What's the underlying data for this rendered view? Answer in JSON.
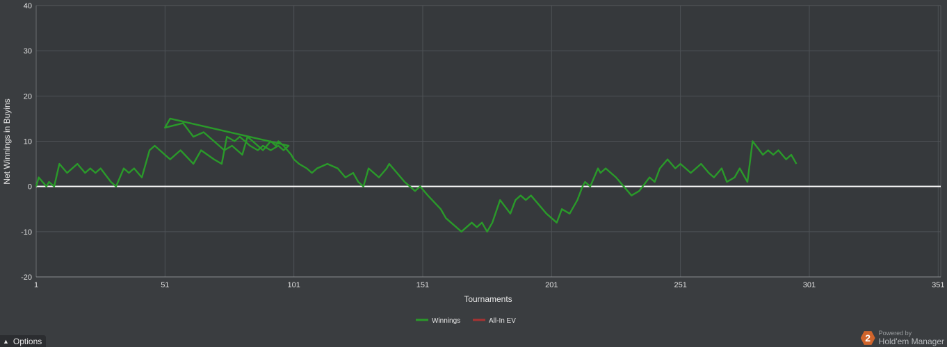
{
  "chart_data": {
    "type": "line",
    "xlabel": "Tournaments",
    "ylabel": "Net Winnings in Buyins",
    "xlim": [
      1,
      352
    ],
    "ylim": [
      -20,
      40
    ],
    "x_ticks": [
      1,
      51,
      101,
      151,
      201,
      251,
      301,
      351
    ],
    "x_tick_labels": [
      "1",
      "51",
      "101",
      "151",
      "201",
      "251",
      "301",
      "351"
    ],
    "y_ticks": [
      -20,
      -10,
      0,
      10,
      20,
      30,
      40
    ],
    "y_tick_labels": [
      "-20",
      "-10",
      "0",
      "10",
      "20",
      "30",
      "40"
    ],
    "grid": true,
    "legend_position": "bottom-center",
    "series": [
      {
        "name": "Winnings",
        "color": "#2a9a2a",
        "points": [
          [
            1,
            0
          ],
          [
            2,
            2
          ],
          [
            5,
            0
          ],
          [
            6,
            1
          ],
          [
            8,
            0
          ],
          [
            10,
            5
          ],
          [
            13,
            3
          ],
          [
            17,
            5
          ],
          [
            20,
            3
          ],
          [
            22,
            4
          ],
          [
            24,
            3
          ],
          [
            26,
            4
          ],
          [
            30,
            1
          ],
          [
            32,
            0
          ],
          [
            35,
            4
          ],
          [
            37,
            3
          ],
          [
            39,
            4
          ],
          [
            42,
            2
          ],
          [
            45,
            8
          ],
          [
            47,
            9
          ],
          [
            53,
            6
          ],
          [
            57,
            8
          ],
          [
            62,
            5
          ],
          [
            65,
            8
          ],
          [
            70,
            6
          ],
          [
            73,
            5
          ],
          [
            75,
            11
          ],
          [
            78,
            10
          ],
          [
            80,
            11
          ],
          [
            84,
            9
          ],
          [
            87,
            8
          ],
          [
            89,
            9
          ],
          [
            92,
            8
          ],
          [
            95,
            9
          ],
          [
            97,
            8
          ],
          [
            99,
            9
          ],
          [
            53,
            15
          ],
          [
            51,
            13
          ],
          [
            58,
            14
          ],
          [
            62,
            11
          ],
          [
            66,
            12
          ],
          [
            70,
            10
          ],
          [
            74,
            8
          ],
          [
            77,
            9
          ],
          [
            79,
            8
          ],
          [
            81,
            7
          ],
          [
            83,
            11
          ],
          [
            85,
            10
          ],
          [
            89,
            8
          ],
          [
            92,
            10
          ],
          [
            94,
            9
          ],
          [
            95,
            10
          ],
          [
            97,
            9
          ],
          [
            100,
            7
          ],
          [
            101,
            6
          ],
          [
            103,
            5
          ],
          [
            106,
            4
          ],
          [
            108,
            3
          ],
          [
            110,
            4
          ],
          [
            114,
            5
          ],
          [
            118,
            4
          ],
          [
            121,
            2
          ],
          [
            124,
            3
          ],
          [
            126,
            1
          ],
          [
            128,
            0
          ],
          [
            130,
            4
          ],
          [
            134,
            2
          ],
          [
            137,
            4
          ],
          [
            138,
            5
          ],
          [
            141,
            3
          ],
          [
            144,
            1
          ],
          [
            146,
            0
          ],
          [
            148,
            -1
          ],
          [
            150,
            0
          ],
          [
            153,
            -2
          ],
          [
            158,
            -5
          ],
          [
            160,
            -7
          ],
          [
            164,
            -9
          ],
          [
            166,
            -10
          ],
          [
            168,
            -9
          ],
          [
            170,
            -8
          ],
          [
            172,
            -9
          ],
          [
            174,
            -8
          ],
          [
            176,
            -10
          ],
          [
            178,
            -8
          ],
          [
            181,
            -3
          ],
          [
            185,
            -6
          ],
          [
            187,
            -3
          ],
          [
            189,
            -2
          ],
          [
            191,
            -3
          ],
          [
            193,
            -2
          ],
          [
            199,
            -6
          ],
          [
            201,
            -7
          ],
          [
            203,
            -8
          ],
          [
            205,
            -5
          ],
          [
            208,
            -6
          ],
          [
            211,
            -3
          ],
          [
            213,
            0
          ],
          [
            214,
            1
          ],
          [
            216,
            0
          ],
          [
            219,
            4
          ],
          [
            220,
            3
          ],
          [
            222,
            4
          ],
          [
            226,
            2
          ],
          [
            229,
            0
          ],
          [
            232,
            -2
          ],
          [
            235,
            -1
          ],
          [
            239,
            2
          ],
          [
            241,
            1
          ],
          [
            243,
            4
          ],
          [
            246,
            6
          ],
          [
            249,
            4
          ],
          [
            251,
            5
          ],
          [
            253,
            4
          ],
          [
            255,
            3
          ],
          [
            257,
            4
          ],
          [
            259,
            5
          ],
          [
            262,
            3
          ],
          [
            264,
            2
          ],
          [
            267,
            4
          ],
          [
            269,
            1
          ],
          [
            272,
            2
          ],
          [
            274,
            4
          ],
          [
            276,
            2
          ],
          [
            277,
            1
          ],
          [
            279,
            10
          ],
          [
            283,
            7
          ],
          [
            285,
            8
          ],
          [
            287,
            7
          ],
          [
            289,
            8
          ],
          [
            292,
            6
          ],
          [
            294,
            7
          ],
          [
            296,
            5
          ]
        ]
      },
      {
        "name": "All-In EV",
        "color": "#a83232",
        "points": [
          [
            1,
            0
          ]
        ]
      }
    ]
  },
  "ui": {
    "legend": {
      "winnings": "Winnings",
      "allin": "All-In EV"
    },
    "options_label": "Options",
    "brand_powered": "Powered by",
    "brand_name": "Hold'em Manager",
    "brand_logo": "2"
  }
}
